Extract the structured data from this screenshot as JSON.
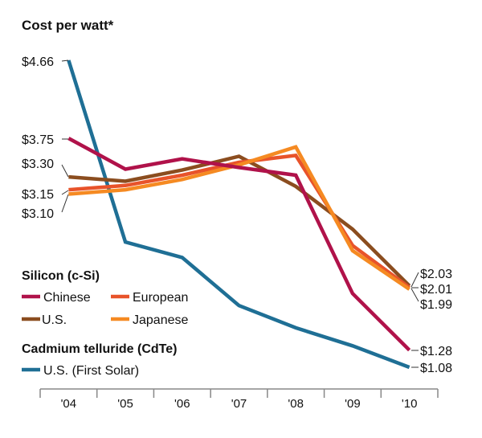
{
  "chart_data": {
    "type": "line",
    "title": "Cost per watt*",
    "xlabel": "",
    "ylabel": "",
    "categories": [
      "'04",
      "'05",
      "'06",
      "'07",
      "'08",
      "'09",
      "'10"
    ],
    "ylim": [
      1.08,
      4.66
    ],
    "grid": false,
    "legend_position": "bottom-left",
    "legend_groups": [
      {
        "heading": "Silicon (c-Si)",
        "entries": [
          "Chinese",
          "European",
          "U.S.",
          "Japanese"
        ]
      },
      {
        "heading": "Cadmium telluride (CdTe)",
        "entries": [
          "U.S. (First Solar)"
        ]
      }
    ],
    "series": [
      {
        "name": "Chinese",
        "group": "Silicon (c-Si)",
        "color": "#b0124a",
        "values": [
          3.75,
          3.39,
          3.51,
          3.41,
          3.32,
          1.94,
          1.28
        ]
      },
      {
        "name": "European",
        "group": "Silicon (c-Si)",
        "color": "#e8532a",
        "values": [
          3.15,
          3.2,
          3.32,
          3.47,
          3.55,
          2.5,
          2.01
        ]
      },
      {
        "name": "U.S.",
        "group": "Silicon (c-Si)",
        "color": "#8b4d1f",
        "values": [
          3.3,
          3.25,
          3.38,
          3.54,
          3.19,
          2.69,
          2.03
        ]
      },
      {
        "name": "Japanese",
        "group": "Silicon (c-Si)",
        "color": "#f58a22",
        "values": [
          3.1,
          3.15,
          3.27,
          3.44,
          3.65,
          2.44,
          1.99
        ]
      },
      {
        "name": "U.S. (First Solar)",
        "group": "Cadmium telluride (CdTe)",
        "color": "#1f6f95",
        "values": [
          4.66,
          2.54,
          2.36,
          1.8,
          1.54,
          1.33,
          1.08
        ]
      }
    ],
    "start_labels": [
      "$4.66",
      "$3.75",
      "$3.30",
      "$3.15",
      "$3.10"
    ],
    "end_labels": [
      "$2.03",
      "$2.01",
      "$1.99",
      "$1.28",
      "$1.08"
    ]
  }
}
